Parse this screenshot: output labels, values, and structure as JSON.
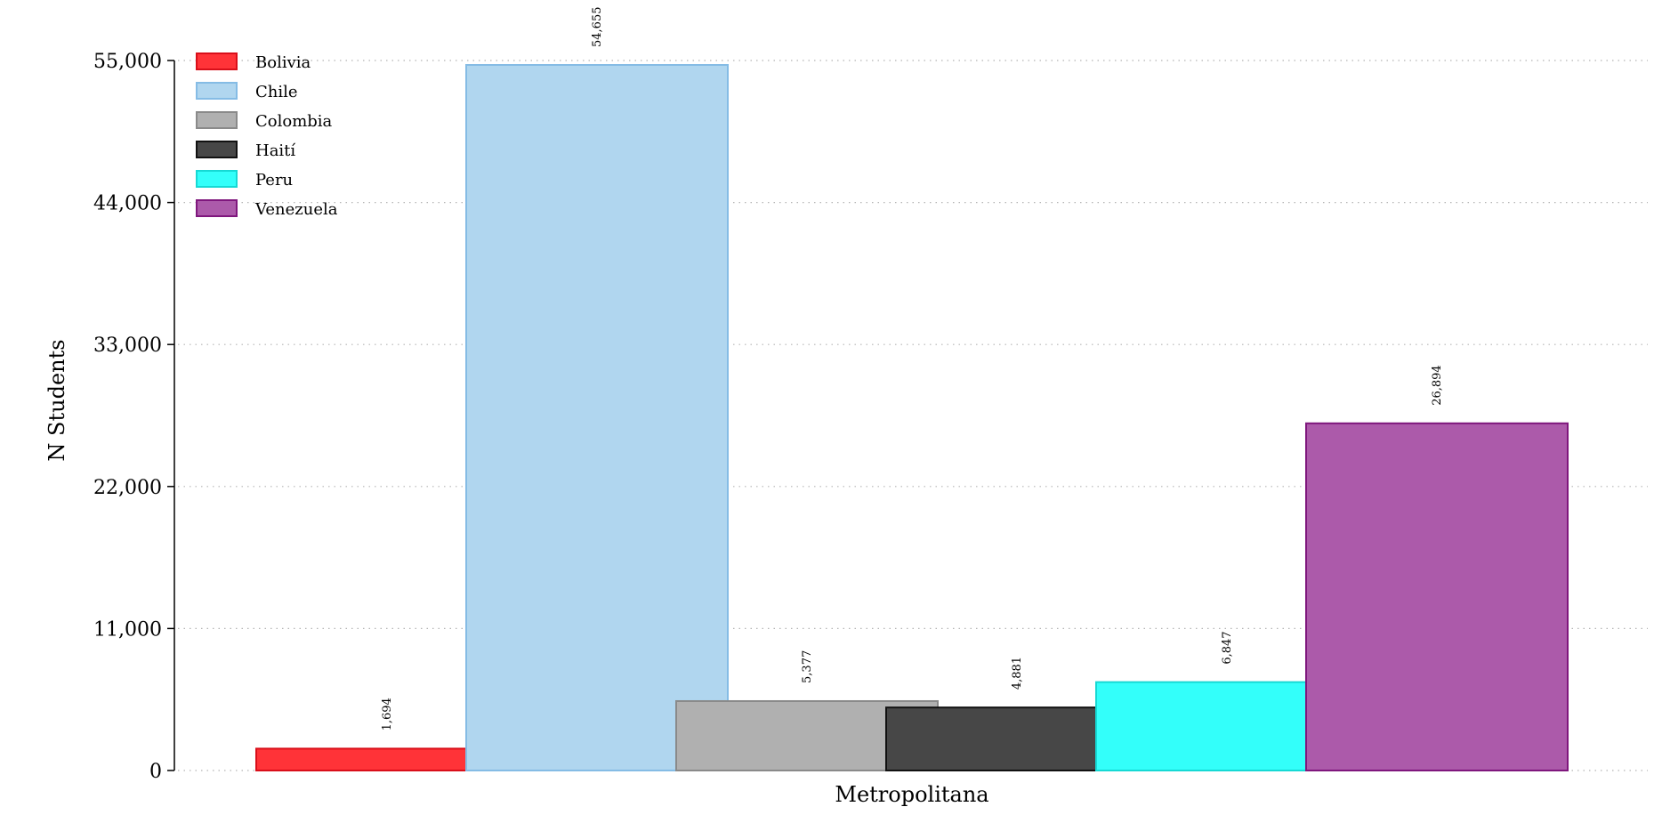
{
  "chart_data": {
    "type": "bar",
    "categories": [
      "Metropolitana"
    ],
    "series": [
      {
        "name": "Bolivia",
        "values": [
          1694
        ],
        "fill": "#FF3338",
        "stroke": "#D90F1A",
        "label": "1,694"
      },
      {
        "name": "Chile",
        "values": [
          54655
        ],
        "fill": "#B0D6EF",
        "stroke": "#85BCE5",
        "label": "54,655"
      },
      {
        "name": "Colombia",
        "values": [
          5377
        ],
        "fill": "#B0B0B0",
        "stroke": "#8A8A8A",
        "label": "5,377"
      },
      {
        "name": "Haití",
        "values": [
          4881
        ],
        "fill": "#474747",
        "stroke": "#111111",
        "label": "4,881"
      },
      {
        "name": "Peru",
        "values": [
          6847
        ],
        "fill": "#33FFFA",
        "stroke": "#16D9D4",
        "label": "6,847"
      },
      {
        "name": "Venezuela",
        "values": [
          26894
        ],
        "fill": "#AC5AAA",
        "stroke": "#7F177D",
        "label": "26,894"
      }
    ],
    "title": "",
    "xlabel": "Metropolitana",
    "ylabel": "N Students",
    "ylim": [
      0,
      55000
    ],
    "yticks": [
      0,
      11000,
      22000,
      33000,
      44000,
      55000
    ],
    "ytick_labels": [
      "0",
      "11,000",
      "22,000",
      "33,000",
      "44,000",
      "55,000"
    ],
    "grid": "dotted-horizontal",
    "legend_position": "top-left"
  }
}
